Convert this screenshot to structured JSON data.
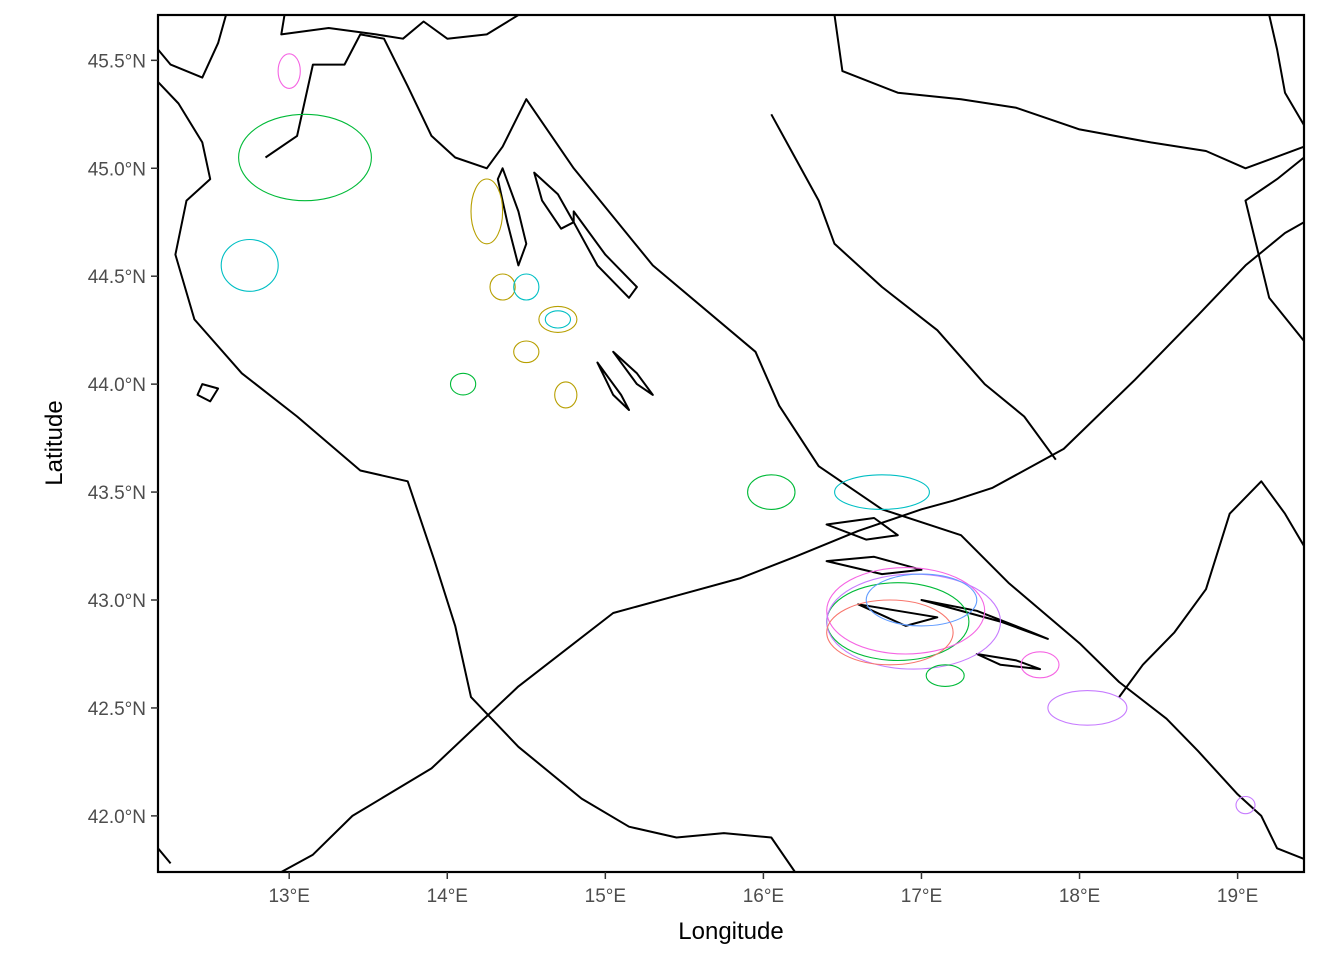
{
  "chart_data": {
    "type": "map",
    "xlabel": "Longitude",
    "ylabel": "Latitude",
    "x_ticks": [
      {
        "value": 13,
        "label": "13°E"
      },
      {
        "value": 14,
        "label": "14°E"
      },
      {
        "value": 15,
        "label": "15°E"
      },
      {
        "value": 16,
        "label": "16°E"
      },
      {
        "value": 17,
        "label": "17°E"
      },
      {
        "value": 18,
        "label": "18°E"
      },
      {
        "value": 19,
        "label": "19°E"
      }
    ],
    "y_ticks": [
      {
        "value": 45.5,
        "label": "45.5°N"
      },
      {
        "value": 45.0,
        "label": "45.0°N"
      },
      {
        "value": 44.5,
        "label": "44.5°N"
      },
      {
        "value": 44.0,
        "label": "44.0°N"
      },
      {
        "value": 43.5,
        "label": "43.5°N"
      },
      {
        "value": 43.0,
        "label": "43.0°N"
      },
      {
        "value": 42.5,
        "label": "42.5°N"
      },
      {
        "value": 42.0,
        "label": "42.0°N"
      }
    ],
    "xlim": [
      12.17,
      19.42
    ],
    "ylim": [
      41.74,
      45.71
    ],
    "grid": false,
    "legend": "none",
    "colors": [
      "#F8766D",
      "#B79F00",
      "#00BA38",
      "#00BFC4",
      "#619CFF",
      "#F564E3",
      "#C77CFF"
    ],
    "coastlines": [
      [
        [
          12.17,
          41.85
        ],
        [
          12.25,
          41.78
        ]
      ],
      [
        [
          12.17,
          45.71
        ],
        [
          12.17,
          45.55
        ],
        [
          12.25,
          45.48
        ],
        [
          12.45,
          45.42
        ],
        [
          12.55,
          45.58
        ],
        [
          12.6,
          45.71
        ]
      ],
      [
        [
          12.97,
          45.71
        ],
        [
          12.95,
          45.62
        ],
        [
          13.25,
          45.65
        ],
        [
          13.55,
          45.62
        ],
        [
          13.72,
          45.6
        ],
        [
          13.85,
          45.68
        ],
        [
          14.0,
          45.6
        ],
        [
          14.25,
          45.62
        ],
        [
          14.45,
          45.71
        ]
      ],
      [
        [
          12.95,
          41.74
        ],
        [
          13.15,
          41.82
        ],
        [
          13.4,
          42.0
        ],
        [
          13.9,
          42.22
        ],
        [
          14.45,
          42.6
        ],
        [
          15.05,
          42.94
        ],
        [
          15.45,
          43.02
        ],
        [
          15.85,
          43.1
        ],
        [
          16.2,
          43.2
        ],
        [
          16.6,
          43.32
        ],
        [
          17.0,
          43.42
        ],
        [
          17.2,
          43.46
        ],
        [
          17.45,
          43.52
        ],
        [
          17.9,
          43.7
        ],
        [
          18.35,
          44.02
        ],
        [
          18.75,
          44.32
        ],
        [
          19.05,
          44.55
        ],
        [
          19.3,
          44.7
        ],
        [
          19.42,
          44.75
        ]
      ],
      [
        [
          12.17,
          45.4
        ],
        [
          12.3,
          45.3
        ],
        [
          12.45,
          45.12
        ],
        [
          12.5,
          44.95
        ],
        [
          12.35,
          44.85
        ],
        [
          12.28,
          44.6
        ],
        [
          12.4,
          44.3
        ],
        [
          12.7,
          44.05
        ],
        [
          13.05,
          43.85
        ],
        [
          13.45,
          43.6
        ],
        [
          13.75,
          43.55
        ],
        [
          13.92,
          43.18
        ],
        [
          14.05,
          42.88
        ],
        [
          14.15,
          42.55
        ],
        [
          14.45,
          42.32
        ],
        [
          14.85,
          42.08
        ],
        [
          15.15,
          41.95
        ],
        [
          15.45,
          41.9
        ],
        [
          15.75,
          41.92
        ],
        [
          16.05,
          41.9
        ],
        [
          16.2,
          41.74
        ]
      ],
      [
        [
          12.85,
          45.05
        ],
        [
          13.05,
          45.15
        ],
        [
          13.15,
          45.48
        ],
        [
          13.35,
          45.48
        ],
        [
          13.45,
          45.62
        ],
        [
          13.6,
          45.6
        ],
        [
          13.75,
          45.38
        ],
        [
          13.9,
          45.15
        ],
        [
          14.05,
          45.05
        ],
        [
          14.25,
          45.0
        ],
        [
          14.35,
          45.1
        ],
        [
          14.5,
          45.32
        ],
        [
          14.8,
          45.0
        ],
        [
          15.3,
          44.55
        ],
        [
          15.95,
          44.15
        ],
        [
          16.1,
          43.9
        ],
        [
          16.35,
          43.62
        ],
        [
          16.75,
          43.42
        ],
        [
          17.25,
          43.3
        ],
        [
          17.55,
          43.08
        ],
        [
          18.0,
          42.8
        ],
        [
          18.25,
          42.62
        ],
        [
          18.55,
          42.45
        ],
        [
          18.75,
          42.3
        ],
        [
          19.0,
          42.1
        ],
        [
          19.15,
          42.0
        ],
        [
          19.25,
          41.85
        ],
        [
          19.42,
          41.8
        ]
      ],
      [
        [
          19.42,
          43.25
        ],
        [
          19.3,
          43.4
        ],
        [
          19.15,
          43.55
        ],
        [
          18.95,
          43.4
        ],
        [
          18.8,
          43.05
        ],
        [
          18.6,
          42.85
        ],
        [
          18.4,
          42.7
        ],
        [
          18.25,
          42.55
        ]
      ],
      [
        [
          19.42,
          44.2
        ],
        [
          19.2,
          44.4
        ],
        [
          19.05,
          44.85
        ],
        [
          19.25,
          44.95
        ],
        [
          19.42,
          45.05
        ]
      ],
      [
        [
          19.42,
          45.2
        ],
        [
          19.3,
          45.35
        ],
        [
          19.25,
          45.55
        ],
        [
          19.2,
          45.71
        ]
      ],
      [
        [
          16.45,
          45.71
        ],
        [
          16.5,
          45.45
        ],
        [
          16.85,
          45.35
        ],
        [
          17.25,
          45.32
        ],
        [
          17.6,
          45.28
        ],
        [
          18.0,
          45.18
        ],
        [
          18.45,
          45.12
        ],
        [
          18.8,
          45.08
        ],
        [
          19.05,
          45.0
        ],
        [
          19.42,
          45.1
        ]
      ],
      [
        [
          16.05,
          45.25
        ],
        [
          16.2,
          45.05
        ],
        [
          16.35,
          44.85
        ],
        [
          16.45,
          44.65
        ],
        [
          16.75,
          44.45
        ],
        [
          17.1,
          44.25
        ],
        [
          17.4,
          44.0
        ],
        [
          17.65,
          43.85
        ],
        [
          17.85,
          43.65
        ]
      ]
    ],
    "islands": [
      [
        [
          14.35,
          45.0
        ],
        [
          14.45,
          44.8
        ],
        [
          14.5,
          44.65
        ],
        [
          14.45,
          44.55
        ],
        [
          14.38,
          44.75
        ],
        [
          14.32,
          44.95
        ],
        [
          14.35,
          45.0
        ]
      ],
      [
        [
          14.55,
          44.98
        ],
        [
          14.7,
          44.88
        ],
        [
          14.8,
          44.75
        ],
        [
          14.72,
          44.72
        ],
        [
          14.6,
          44.85
        ],
        [
          14.55,
          44.98
        ]
      ],
      [
        [
          14.8,
          44.8
        ],
        [
          15.0,
          44.6
        ],
        [
          15.2,
          44.45
        ],
        [
          15.15,
          44.4
        ],
        [
          14.95,
          44.55
        ],
        [
          14.8,
          44.75
        ],
        [
          14.8,
          44.8
        ]
      ],
      [
        [
          14.95,
          44.1
        ],
        [
          15.1,
          43.95
        ],
        [
          15.15,
          43.88
        ],
        [
          15.05,
          43.95
        ],
        [
          14.95,
          44.1
        ]
      ],
      [
        [
          15.05,
          44.15
        ],
        [
          15.2,
          44.05
        ],
        [
          15.3,
          43.95
        ],
        [
          15.2,
          44.0
        ],
        [
          15.05,
          44.15
        ]
      ],
      [
        [
          12.45,
          44.0
        ],
        [
          12.55,
          43.98
        ],
        [
          12.5,
          43.92
        ],
        [
          12.42,
          43.95
        ],
        [
          12.45,
          44.0
        ]
      ],
      [
        [
          16.4,
          43.35
        ],
        [
          16.7,
          43.38
        ],
        [
          16.85,
          43.3
        ],
        [
          16.65,
          43.28
        ],
        [
          16.4,
          43.35
        ]
      ],
      [
        [
          16.4,
          43.18
        ],
        [
          16.7,
          43.2
        ],
        [
          17.0,
          43.14
        ],
        [
          16.75,
          43.12
        ],
        [
          16.4,
          43.18
        ]
      ],
      [
        [
          16.6,
          42.98
        ],
        [
          16.85,
          42.95
        ],
        [
          17.1,
          42.92
        ],
        [
          16.9,
          42.88
        ],
        [
          16.6,
          42.98
        ]
      ],
      [
        [
          17.0,
          43.0
        ],
        [
          17.35,
          42.95
        ],
        [
          17.7,
          42.85
        ],
        [
          17.8,
          42.82
        ],
        [
          17.5,
          42.9
        ],
        [
          17.0,
          43.0
        ]
      ],
      [
        [
          17.35,
          42.75
        ],
        [
          17.6,
          42.72
        ],
        [
          17.75,
          42.68
        ],
        [
          17.5,
          42.7
        ],
        [
          17.35,
          42.75
        ]
      ]
    ],
    "kernel_contours": [
      {
        "color": "#00BA38",
        "center": [
          13.1,
          45.05
        ],
        "rx": 0.42,
        "ry": 0.2
      },
      {
        "color": "#00BFC4",
        "center": [
          12.75,
          44.55
        ],
        "rx": 0.18,
        "ry": 0.12
      },
      {
        "color": "#B79F00",
        "center": [
          14.25,
          44.8
        ],
        "rx": 0.1,
        "ry": 0.15
      },
      {
        "color": "#B79F00",
        "center": [
          14.35,
          44.45
        ],
        "rx": 0.08,
        "ry": 0.06
      },
      {
        "color": "#00BFC4",
        "center": [
          14.5,
          44.45
        ],
        "rx": 0.08,
        "ry": 0.06
      },
      {
        "color": "#B79F00",
        "center": [
          14.7,
          44.3
        ],
        "rx": 0.12,
        "ry": 0.06
      },
      {
        "color": "#00BFC4",
        "center": [
          14.7,
          44.3
        ],
        "rx": 0.08,
        "ry": 0.04
      },
      {
        "color": "#B79F00",
        "center": [
          14.5,
          44.15
        ],
        "rx": 0.08,
        "ry": 0.05
      },
      {
        "color": "#B79F00",
        "center": [
          14.75,
          43.95
        ],
        "rx": 0.07,
        "ry": 0.06
      },
      {
        "color": "#00BA38",
        "center": [
          14.1,
          44.0
        ],
        "rx": 0.08,
        "ry": 0.05
      },
      {
        "color": "#F564E3",
        "center": [
          13.0,
          45.45
        ],
        "rx": 0.07,
        "ry": 0.08
      },
      {
        "color": "#00BFC4",
        "center": [
          16.75,
          43.5
        ],
        "rx": 0.3,
        "ry": 0.08
      },
      {
        "color": "#00BA38",
        "center": [
          16.85,
          42.9
        ],
        "rx": 0.45,
        "ry": 0.18
      },
      {
        "color": "#F564E3",
        "center": [
          16.9,
          42.95
        ],
        "rx": 0.5,
        "ry": 0.2
      },
      {
        "color": "#C77CFF",
        "center": [
          16.95,
          42.9
        ],
        "rx": 0.55,
        "ry": 0.22
      },
      {
        "color": "#F8766D",
        "center": [
          16.8,
          42.85
        ],
        "rx": 0.4,
        "ry": 0.15
      },
      {
        "color": "#619CFF",
        "center": [
          17.0,
          43.0
        ],
        "rx": 0.35,
        "ry": 0.12
      },
      {
        "color": "#F564E3",
        "center": [
          17.75,
          42.7
        ],
        "rx": 0.12,
        "ry": 0.06
      },
      {
        "color": "#C77CFF",
        "center": [
          18.05,
          42.5
        ],
        "rx": 0.25,
        "ry": 0.08
      },
      {
        "color": "#C77CFF",
        "center": [
          19.05,
          42.05
        ],
        "rx": 0.06,
        "ry": 0.04
      },
      {
        "color": "#00BA38",
        "center": [
          16.05,
          43.5
        ],
        "rx": 0.15,
        "ry": 0.08
      },
      {
        "color": "#00BA38",
        "center": [
          17.15,
          42.65
        ],
        "rx": 0.12,
        "ry": 0.05
      }
    ]
  }
}
